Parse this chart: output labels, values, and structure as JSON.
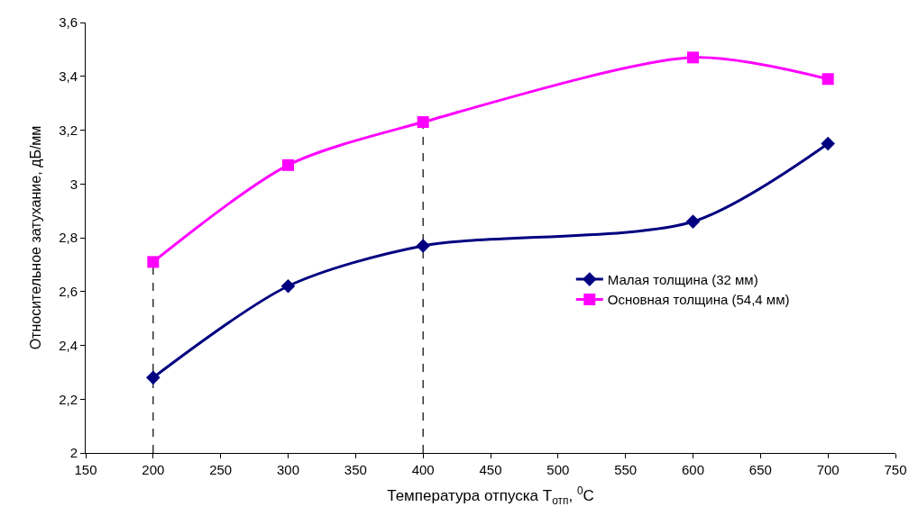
{
  "chart_data": {
    "type": "line",
    "xlabel": "Температура отпуска T$_{отп}$, $^{0}$C",
    "ylabel": "Относительное затухание, дБ/мм",
    "x": [
      200,
      300,
      400,
      600,
      700
    ],
    "series": [
      {
        "name": "Малая толщина (32 мм)",
        "color": "#000080",
        "marker": "diamond",
        "values": [
          2.28,
          2.62,
          2.77,
          2.86,
          3.15
        ]
      },
      {
        "name": "Основная толщина (54,4 мм)",
        "color": "#ff00ff",
        "marker": "square",
        "values": [
          2.71,
          3.07,
          3.23,
          3.47,
          3.39
        ]
      }
    ],
    "xlim": [
      150,
      750
    ],
    "xticks": [
      150,
      200,
      250,
      300,
      350,
      400,
      450,
      500,
      550,
      600,
      650,
      700,
      750
    ],
    "ylim": [
      2,
      3.6
    ],
    "yticks": [
      2,
      {
        "value": 2.2,
        "label": "2,2"
      },
      {
        "value": 2.4,
        "label": "2,4"
      },
      {
        "value": 2.6,
        "label": "2,6"
      },
      {
        "value": 2.8,
        "label": "2,8"
      },
      3,
      {
        "value": 3.2,
        "label": "3,2"
      },
      {
        "value": 3.4,
        "label": "3,4"
      },
      {
        "value": 3.6,
        "label": "3,6"
      }
    ],
    "ref_lines": [
      {
        "axis": "x",
        "value": 200,
        "line_style": "dashed",
        "color": "#000000"
      },
      {
        "axis": "x",
        "value": 400,
        "line_style": "dashed",
        "color": "#000000"
      }
    ],
    "grid": false,
    "legend": "right",
    "line_style": "solid"
  }
}
